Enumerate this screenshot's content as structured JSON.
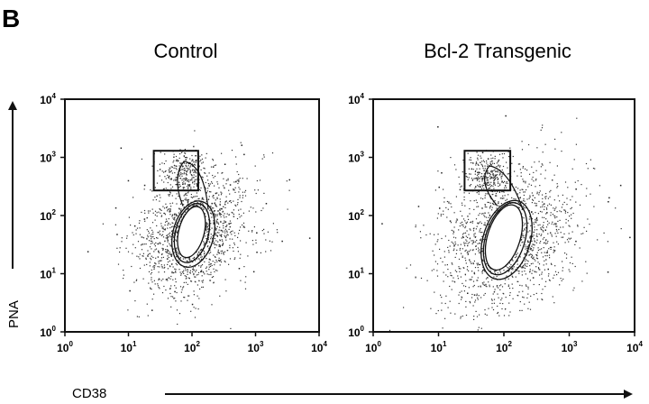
{
  "panel_label": "B",
  "chart_data": [
    {
      "type": "scatter",
      "title": "Control",
      "xlabel": "CD38",
      "ylabel": "PNA",
      "x_scale": "log",
      "y_scale": "log",
      "xlim": [
        1,
        10000
      ],
      "ylim": [
        1,
        10000
      ],
      "x_ticks": [
        {
          "base": "10",
          "exp": "0"
        },
        {
          "base": "10",
          "exp": "1"
        },
        {
          "base": "10",
          "exp": "2"
        },
        {
          "base": "10",
          "exp": "3"
        },
        {
          "base": "10",
          "exp": "4"
        }
      ],
      "y_ticks": [
        {
          "base": "10",
          "exp": "0"
        },
        {
          "base": "10",
          "exp": "1"
        },
        {
          "base": "10",
          "exp": "2"
        },
        {
          "base": "10",
          "exp": "3"
        },
        {
          "base": "10",
          "exp": "4"
        }
      ],
      "gate": {
        "x": [
          25,
          125
        ],
        "y": [
          270,
          1300
        ]
      },
      "main_population": {
        "center": [
          100,
          50
        ],
        "spread_x_decades": 0.28,
        "spread_y_decades": 0.45
      },
      "gated_population": {
        "center": [
          75,
          600
        ]
      },
      "contours": [
        {
          "center": [
            105,
            48
          ],
          "rx_decades": 0.32,
          "ry_decades": 0.58,
          "tilt": 0.25
        },
        {
          "center": [
            100,
            50
          ],
          "rx_decades": 0.26,
          "ry_decades": 0.52,
          "tilt": 0.25
        },
        {
          "center": [
            98,
            52
          ],
          "rx_decades": 0.2,
          "ry_decades": 0.45,
          "tilt": 0.25
        }
      ],
      "grid": false
    },
    {
      "type": "scatter",
      "title": "Bcl-2 Transgenic",
      "xlabel": "CD38",
      "ylabel": "PNA",
      "x_scale": "log",
      "y_scale": "log",
      "xlim": [
        1,
        10000
      ],
      "ylim": [
        1,
        10000
      ],
      "x_ticks": [
        {
          "base": "10",
          "exp": "0"
        },
        {
          "base": "10",
          "exp": "1"
        },
        {
          "base": "10",
          "exp": "2"
        },
        {
          "base": "10",
          "exp": "3"
        },
        {
          "base": "10",
          "exp": "4"
        }
      ],
      "y_ticks": [
        {
          "base": "10",
          "exp": "0"
        },
        {
          "base": "10",
          "exp": "1"
        },
        {
          "base": "10",
          "exp": "2"
        },
        {
          "base": "10",
          "exp": "3"
        },
        {
          "base": "10",
          "exp": "4"
        }
      ],
      "gate": {
        "x": [
          25,
          125
        ],
        "y": [
          270,
          1300
        ]
      },
      "main_population": {
        "center": [
          110,
          40
        ],
        "spread_x_decades": 0.33,
        "spread_y_decades": 0.55
      },
      "gated_population": {
        "center": [
          60,
          500
        ]
      },
      "contours": [
        {
          "center": [
            110,
            38
          ],
          "rx_decades": 0.36,
          "ry_decades": 0.7,
          "tilt": 0.3
        },
        {
          "center": [
            105,
            40
          ],
          "rx_decades": 0.3,
          "ry_decades": 0.64,
          "tilt": 0.3
        },
        {
          "center": [
            100,
            42
          ],
          "rx_decades": 0.25,
          "ry_decades": 0.58,
          "tilt": 0.3
        }
      ],
      "grid": false
    }
  ]
}
